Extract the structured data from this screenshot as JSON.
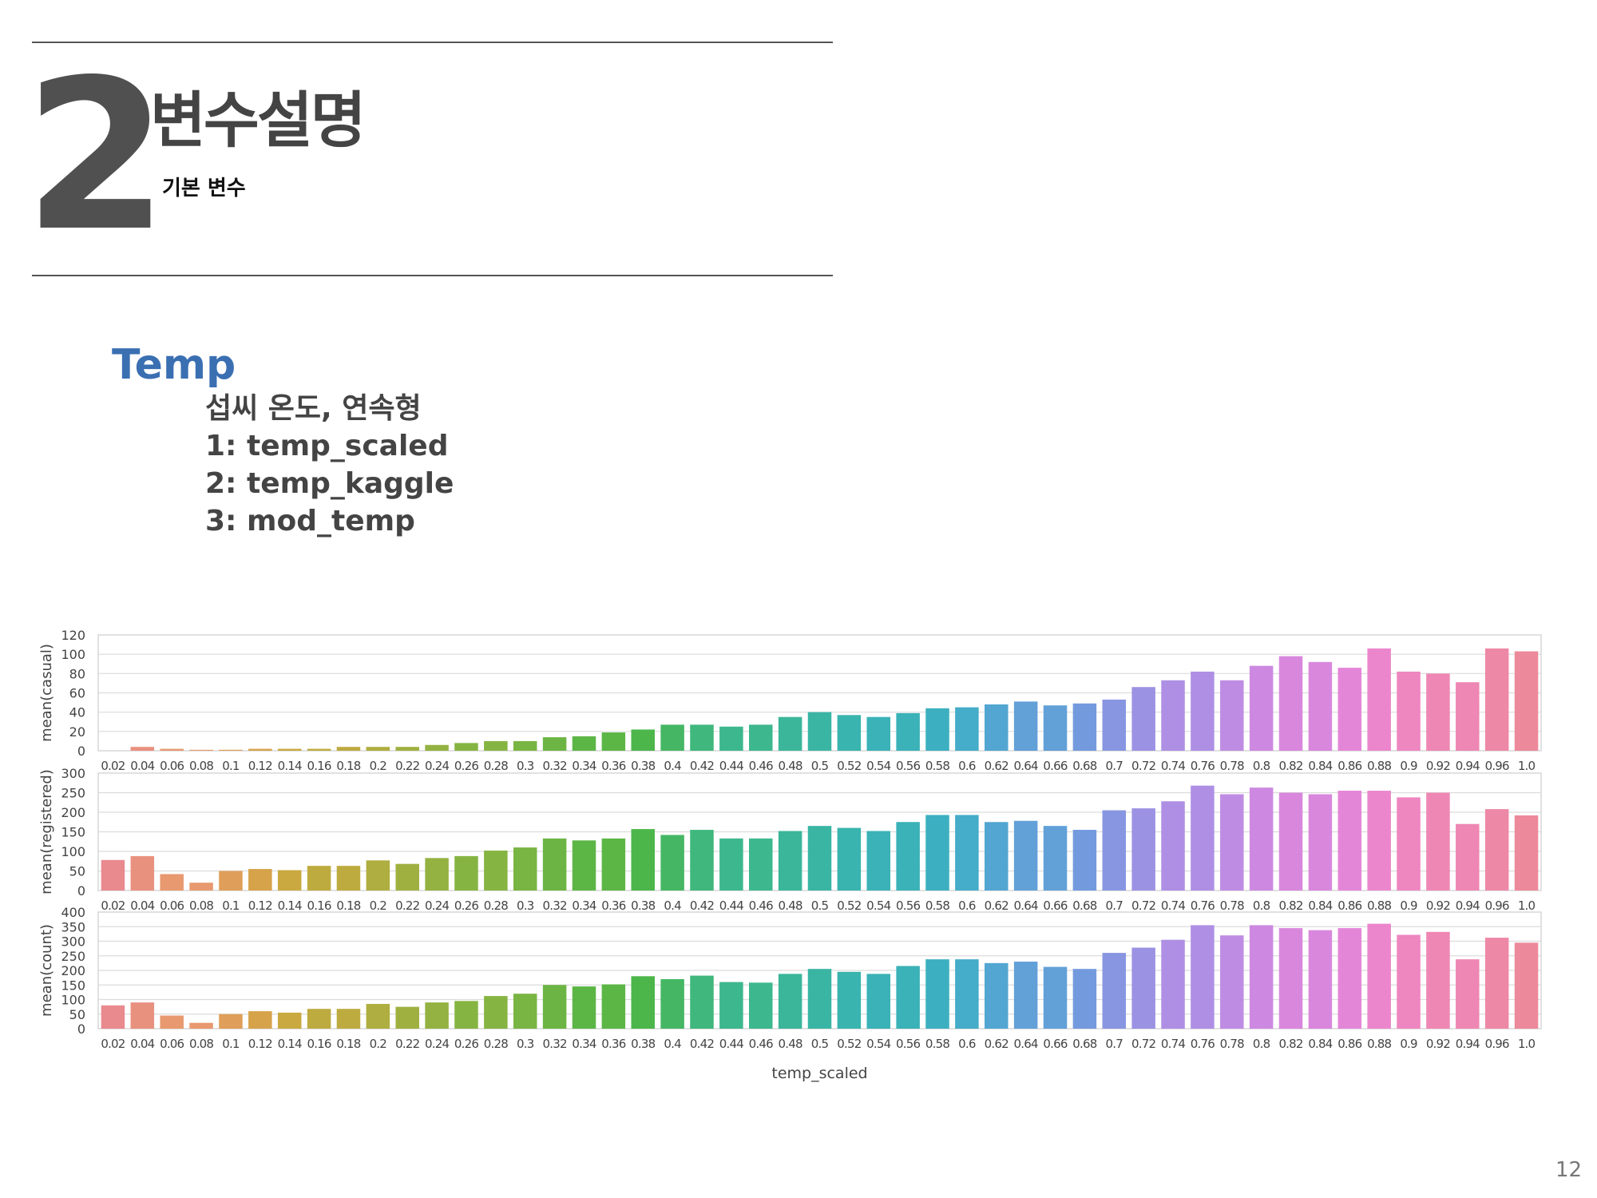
{
  "header": {
    "section_number": "2",
    "section_title": "변수설명",
    "section_subtitle": "기본 변수"
  },
  "variable": {
    "name": "Temp",
    "lines": [
      "섭씨 온도, 연속형",
      "1: temp_scaled",
      "2: temp_kaggle",
      "3: mod_temp"
    ]
  },
  "page_number": "12",
  "chart_data": {
    "type": "bar",
    "xlabel": "temp_scaled",
    "categories": [
      "0.02",
      "0.04",
      "0.06",
      "0.08",
      "0.1",
      "0.12",
      "0.14",
      "0.16",
      "0.18",
      "0.2",
      "0.22",
      "0.24",
      "0.26",
      "0.28",
      "0.3",
      "0.32",
      "0.34",
      "0.36",
      "0.38",
      "0.4",
      "0.42",
      "0.44",
      "0.46",
      "0.48",
      "0.5",
      "0.52",
      "0.54",
      "0.56",
      "0.58",
      "0.6",
      "0.62",
      "0.64",
      "0.66",
      "0.68",
      "0.7",
      "0.72",
      "0.74",
      "0.76",
      "0.78",
      "0.8",
      "0.82",
      "0.84",
      "0.86",
      "0.88",
      "0.9",
      "0.92",
      "0.94",
      "0.96",
      "1.0"
    ],
    "grid": true,
    "panels": [
      {
        "ylabel": "mean(casual)",
        "ylim": [
          0,
          120
        ],
        "yticks": [
          0,
          20,
          40,
          60,
          80,
          100,
          120
        ],
        "values": [
          0,
          4,
          2,
          1,
          1,
          2,
          2,
          2,
          4,
          4,
          4,
          6,
          8,
          10,
          10,
          14,
          15,
          19,
          22,
          27,
          27,
          25,
          27,
          35,
          40,
          37,
          35,
          39,
          44,
          45,
          48,
          51,
          47,
          49,
          53,
          66,
          73,
          82,
          73,
          88,
          98,
          92,
          86,
          106,
          82,
          80,
          71,
          106,
          103
        ]
      },
      {
        "ylabel": "mean(registered)",
        "ylim": [
          0,
          300
        ],
        "yticks": [
          0,
          50,
          100,
          150,
          200,
          250,
          300
        ],
        "values": [
          78,
          88,
          42,
          20,
          50,
          55,
          52,
          63,
          63,
          77,
          68,
          83,
          88,
          102,
          110,
          133,
          128,
          133,
          157,
          142,
          155,
          133,
          133,
          152,
          165,
          160,
          152,
          175,
          193,
          193,
          175,
          178,
          165,
          155,
          205,
          210,
          228,
          268,
          246,
          263,
          250,
          246,
          255,
          255,
          238,
          250,
          170,
          208,
          192
        ]
      },
      {
        "ylabel": "mean(count)",
        "ylim": [
          0,
          400
        ],
        "yticks": [
          0,
          50,
          100,
          150,
          200,
          250,
          300,
          350,
          400
        ],
        "values": [
          80,
          90,
          45,
          20,
          50,
          60,
          55,
          68,
          68,
          85,
          75,
          90,
          95,
          112,
          120,
          150,
          145,
          152,
          180,
          170,
          182,
          160,
          158,
          188,
          205,
          195,
          188,
          215,
          238,
          238,
          225,
          230,
          212,
          205,
          260,
          278,
          305,
          355,
          320,
          355,
          345,
          338,
          345,
          360,
          322,
          332,
          238,
          312,
          295
        ]
      }
    ],
    "colors": [
      "#e98a8f",
      "#e9917f",
      "#e8996f",
      "#df9e59",
      "#d6a34a",
      "#c9a940",
      "#bdab40",
      "#afae40",
      "#a0b040",
      "#93b241",
      "#86b442",
      "#79b543",
      "#6cb544",
      "#5cb646",
      "#4cb64a",
      "#45b764",
      "#40b77d",
      "#3db78e",
      "#3bb69a",
      "#3ab5a4",
      "#39b4ae",
      "#3ab2b7",
      "#3cb0c0",
      "#45acc9",
      "#52a6d1",
      "#62a0d8",
      "#749ade",
      "#8896e1",
      "#9c92e3",
      "#ae8fe4",
      "#bf8ce3",
      "#cd89e1",
      "#d987dd",
      "#e486d8",
      "#eb86cd",
      "#ee86c0",
      "#ee87b3",
      "#ed88a6",
      "#ec899a"
    ]
  }
}
